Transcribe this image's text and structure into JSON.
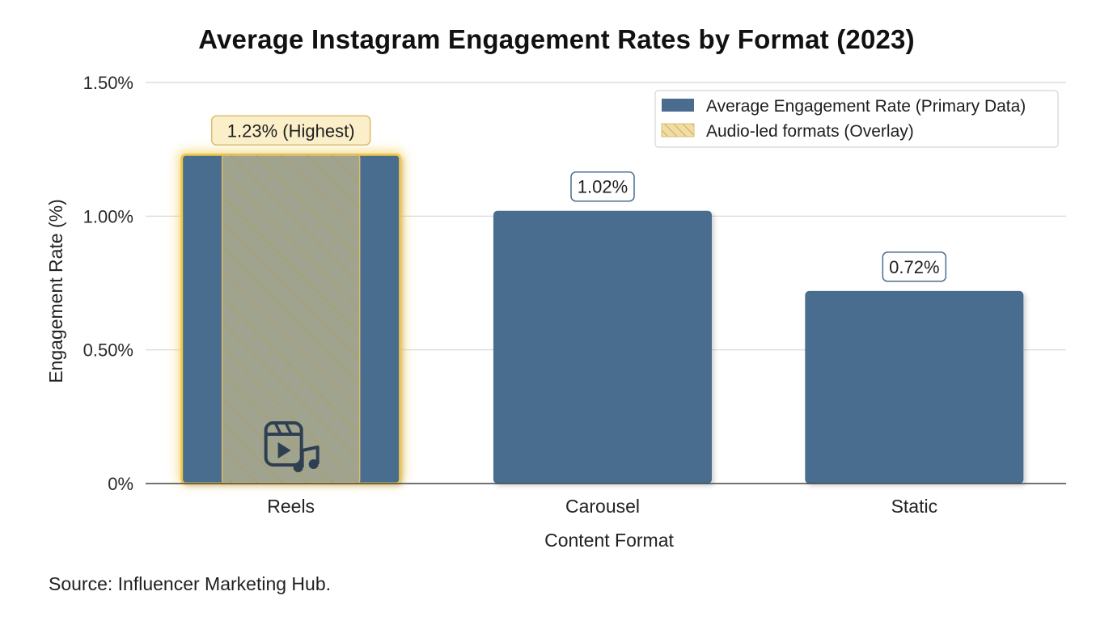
{
  "chart_data": {
    "type": "bar",
    "title": "Average Instagram Engagement Rates by Format (2023)",
    "xlabel": "Content Format",
    "ylabel": "Engagement Rate (%)",
    "categories": [
      "Reels",
      "Carousel",
      "Static"
    ],
    "series": [
      {
        "name": "Average Engagement Rate (Primary Data)",
        "values": [
          1.23,
          1.02,
          0.72
        ],
        "color": "#4a6d8f"
      }
    ],
    "overlay": {
      "name": "Audio-led formats (Overlay)",
      "categories": [
        "Reels"
      ],
      "color": "#e9cf86"
    },
    "data_labels": [
      "1.23% (Highest)",
      "1.02%",
      "0.72%"
    ],
    "highlight_category": "Reels",
    "highlight_icon": "reels-audio-icon",
    "ylim": [
      0,
      1.5
    ],
    "yticks": [
      {
        "value": 0,
        "label": "0%"
      },
      {
        "value": 0.5,
        "label": "0.50%"
      },
      {
        "value": 1.0,
        "label": "1.00%"
      },
      {
        "value": 1.5,
        "label": "1.50%"
      }
    ],
    "grid": true,
    "legend_position": "top-right"
  },
  "source": "Source: Influencer Marketing Hub."
}
